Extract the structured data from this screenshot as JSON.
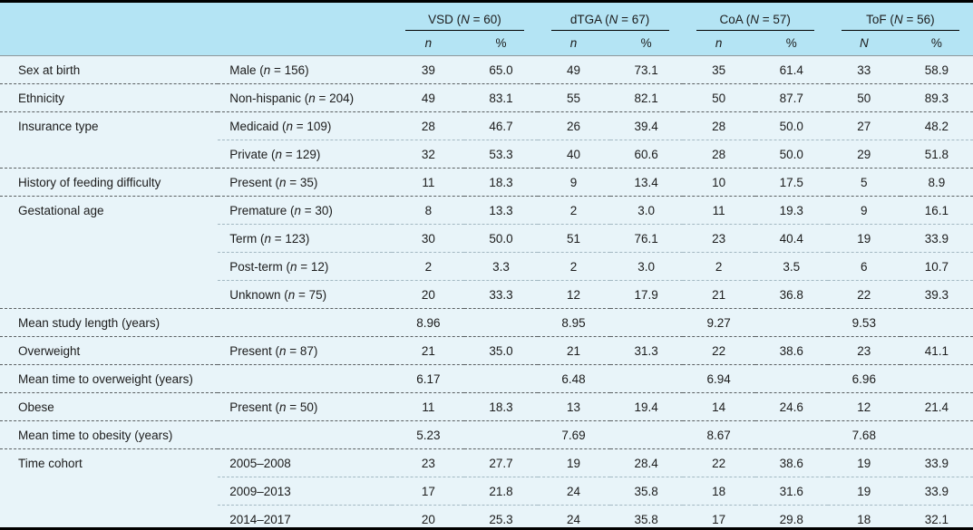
{
  "colors": {
    "header_bg": "#b4e4f4",
    "body_bg": "#e8f4f9",
    "heavy_rule": "#000000",
    "group_separator_rule": "#5a5f61",
    "row_separator_rule": "#a3b8c2"
  },
  "table": {
    "groups": [
      {
        "title": "VSD (N = 60)",
        "count_col": "n",
        "pct_col": "%"
      },
      {
        "title": "dTGA (N = 67)",
        "count_col": "n",
        "pct_col": "%"
      },
      {
        "title": "CoA (N = 57)",
        "count_col": "n",
        "pct_col": "%"
      },
      {
        "title": "ToF (N = 56)",
        "count_col": "N",
        "pct_col": "%"
      }
    ],
    "rows": [
      {
        "category": "Sex at birth",
        "subcategory": "Male (n = 156)",
        "separator": "none",
        "values": [
          "39",
          "65.0",
          "49",
          "73.1",
          "35",
          "61.4",
          "33",
          "58.9"
        ]
      },
      {
        "category": "Ethnicity",
        "subcategory": "Non-hispanic (n = 204)",
        "separator": "full",
        "values": [
          "49",
          "83.1",
          "55",
          "82.1",
          "50",
          "87.7",
          "50",
          "89.3"
        ]
      },
      {
        "category": "Insurance type",
        "subcategory": "Medicaid (n = 109)",
        "separator": "full",
        "values": [
          "28",
          "46.7",
          "26",
          "39.4",
          "28",
          "50.0",
          "27",
          "48.2"
        ]
      },
      {
        "category": "",
        "subcategory": "Private (n = 129)",
        "separator": "partial",
        "values": [
          "32",
          "53.3",
          "40",
          "60.6",
          "28",
          "50.0",
          "29",
          "51.8"
        ]
      },
      {
        "category": "History of feeding difficulty",
        "subcategory": "Present (n = 35)",
        "separator": "full",
        "values": [
          "11",
          "18.3",
          "9",
          "13.4",
          "10",
          "17.5",
          "5",
          "8.9"
        ]
      },
      {
        "category": "Gestational age",
        "subcategory": "Premature (n = 30)",
        "separator": "full",
        "values": [
          "8",
          "13.3",
          "2",
          "3.0",
          "11",
          "19.3",
          "9",
          "16.1"
        ]
      },
      {
        "category": "",
        "subcategory": "Term (n = 123)",
        "separator": "partial",
        "values": [
          "30",
          "50.0",
          "51",
          "76.1",
          "23",
          "40.4",
          "19",
          "33.9"
        ]
      },
      {
        "category": "",
        "subcategory": "Post-term (n = 12)",
        "separator": "partial",
        "values": [
          "2",
          "3.3",
          "2",
          "3.0",
          "2",
          "3.5",
          "6",
          "10.7"
        ]
      },
      {
        "category": "",
        "subcategory": "Unknown (n = 75)",
        "separator": "partial",
        "values": [
          "20",
          "33.3",
          "12",
          "17.9",
          "21",
          "36.8",
          "22",
          "39.3"
        ]
      },
      {
        "category": "Mean study length (years)",
        "subcategory": "",
        "separator": "full",
        "values": [
          "8.96",
          "",
          "8.95",
          "",
          "9.27",
          "",
          "9.53",
          ""
        ]
      },
      {
        "category": "Overweight",
        "subcategory": "Present (n = 87)",
        "separator": "full",
        "values": [
          "21",
          "35.0",
          "21",
          "31.3",
          "22",
          "38.6",
          "23",
          "41.1"
        ]
      },
      {
        "category": "Mean time to overweight (years)",
        "subcategory": "",
        "separator": "full",
        "values": [
          "6.17",
          "",
          "6.48",
          "",
          "6.94",
          "",
          "6.96",
          ""
        ]
      },
      {
        "category": "Obese",
        "subcategory": "Present (n = 50)",
        "separator": "full",
        "values": [
          "11",
          "18.3",
          "13",
          "19.4",
          "14",
          "24.6",
          "12",
          "21.4"
        ]
      },
      {
        "category": "Mean time to obesity (years)",
        "subcategory": "",
        "separator": "full",
        "values": [
          "5.23",
          "",
          "7.69",
          "",
          "8.67",
          "",
          "7.68",
          ""
        ]
      },
      {
        "category": "Time cohort",
        "subcategory": "2005–2008",
        "separator": "full",
        "values": [
          "23",
          "27.7",
          "19",
          "28.4",
          "22",
          "38.6",
          "19",
          "33.9"
        ]
      },
      {
        "category": "",
        "subcategory": "2009–2013",
        "separator": "partial",
        "values": [
          "17",
          "21.8",
          "24",
          "35.8",
          "18",
          "31.6",
          "19",
          "33.9"
        ]
      },
      {
        "category": "",
        "subcategory": "2014–2017",
        "separator": "partial",
        "values": [
          "20",
          "25.3",
          "24",
          "35.8",
          "17",
          "29.8",
          "18",
          "32.1"
        ]
      }
    ]
  }
}
